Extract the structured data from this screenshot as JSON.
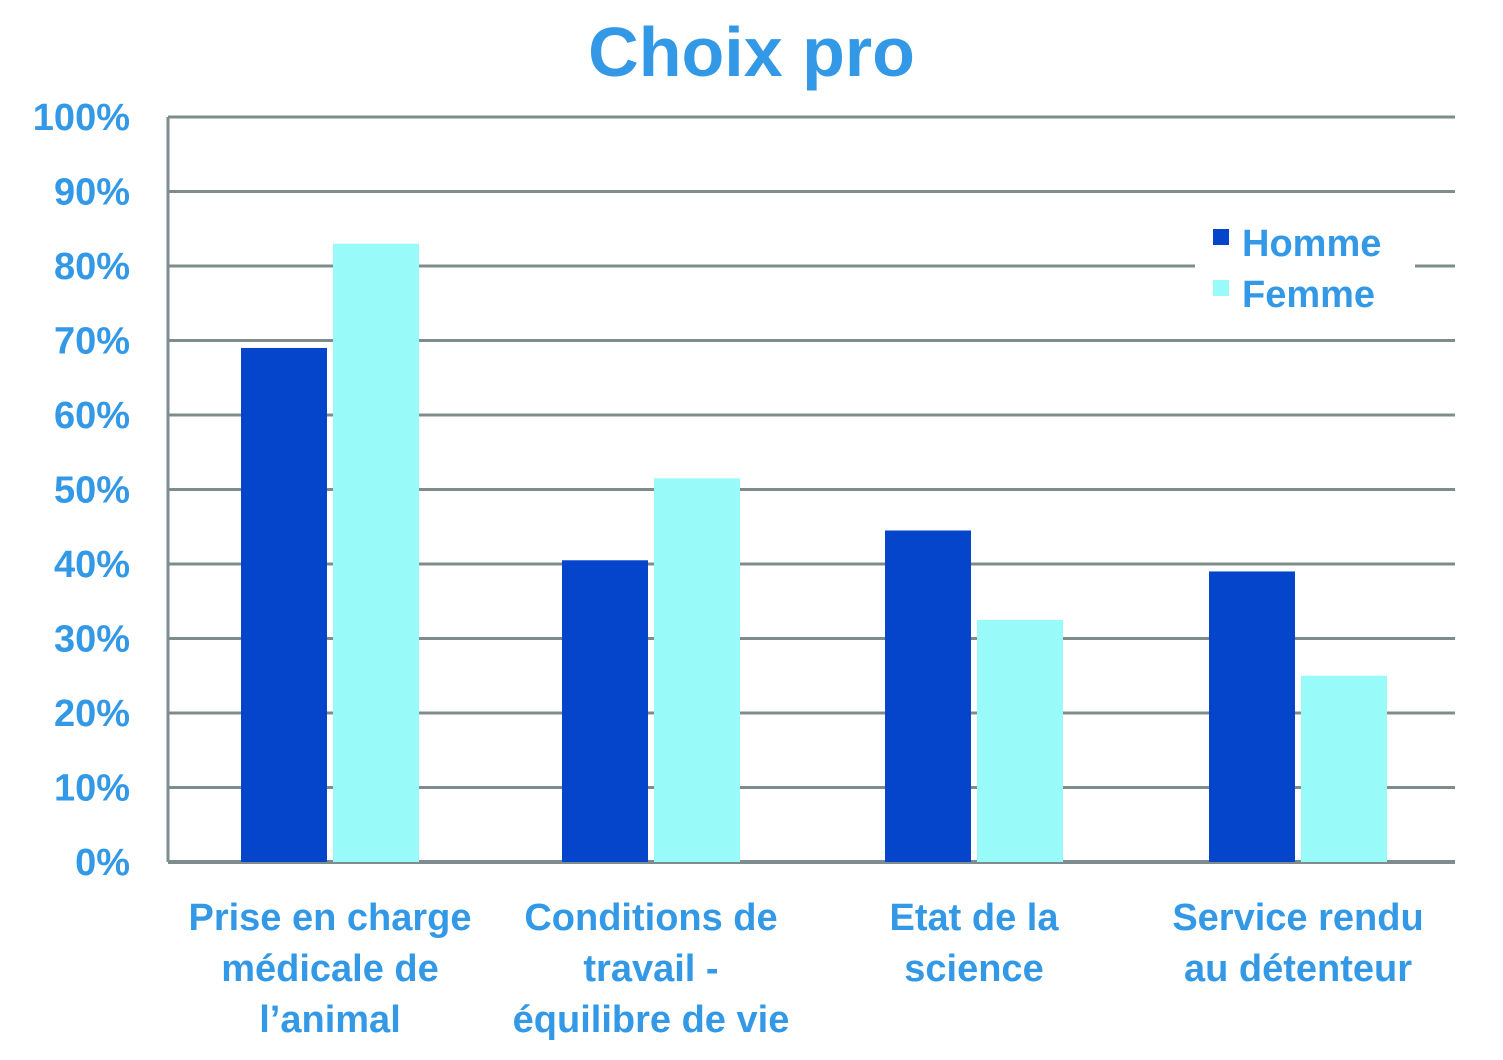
{
  "chart_data": {
    "type": "bar",
    "title": "Choix pro",
    "xlabel": "",
    "ylabel": "",
    "categories": [
      [
        "Prise en charge",
        "médicale de",
        "l’animal"
      ],
      [
        "Conditions de",
        "travail -",
        "équilibre de vie"
      ],
      [
        "Etat de la",
        "science"
      ],
      [
        "Service rendu",
        "au détenteur"
      ]
    ],
    "series": [
      {
        "name": "Homme",
        "color": "#0545cc",
        "values": [
          69,
          40.5,
          44.5,
          39
        ]
      },
      {
        "name": "Femme",
        "color": "#99fafa",
        "values": [
          83,
          51.5,
          32.5,
          25
        ]
      }
    ],
    "ylim": [
      0,
      100
    ],
    "yticks": [
      "0%",
      "10%",
      "20%",
      "30%",
      "40%",
      "50%",
      "60%",
      "70%",
      "80%",
      "90%",
      "100%"
    ],
    "grid": true,
    "legend_position": "top-right"
  },
  "colors": {
    "text": "#3399e6",
    "grid": "#7f8c8d"
  }
}
